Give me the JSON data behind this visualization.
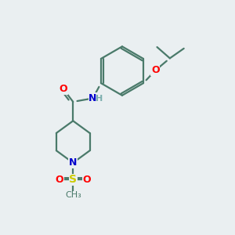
{
  "background_color": "#eaeff1",
  "bond_color": "#4a7a6a",
  "atom_colors": {
    "O": "#ff0000",
    "N": "#0000cc",
    "S": "#cccc00",
    "H": "#7aadad",
    "C": "#4a7a6a"
  },
  "figsize": [
    3.0,
    3.0
  ],
  "dpi": 100
}
